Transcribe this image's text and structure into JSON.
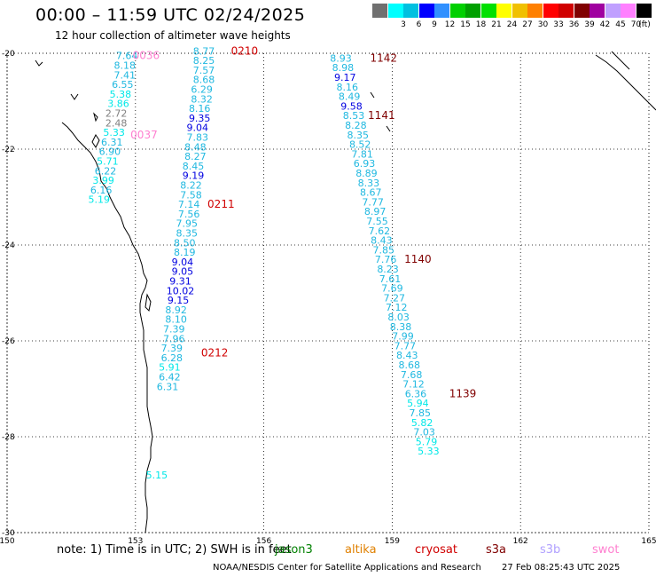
{
  "title": "00:00 – 11:59 UTC 02/24/2025",
  "subtitle": "12 hour collection of altimeter wave heights",
  "legend": {
    "unit": "(ft)",
    "bins": [
      {
        "label": "",
        "color": "#707070"
      },
      {
        "label": "3",
        "color": "#00ffff"
      },
      {
        "label": "6",
        "color": "#00c0e0"
      },
      {
        "label": "9",
        "color": "#0000ff"
      },
      {
        "label": "12",
        "color": "#3090ff"
      },
      {
        "label": "15",
        "color": "#00d000"
      },
      {
        "label": "18",
        "color": "#00a000"
      },
      {
        "label": "21",
        "color": "#00e000"
      },
      {
        "label": "24",
        "color": "#ffff00"
      },
      {
        "label": "27",
        "color": "#f0c000"
      },
      {
        "label": "30",
        "color": "#ff8000"
      },
      {
        "label": "33",
        "color": "#ff0000"
      },
      {
        "label": "36",
        "color": "#d00000"
      },
      {
        "label": "39",
        "color": "#800000"
      },
      {
        "label": "42",
        "color": "#a000a0"
      },
      {
        "label": "45",
        "color": "#c0a0ff"
      },
      {
        "label": "70",
        "color": "#ff80ff"
      },
      {
        "label": "",
        "color": "#000000"
      }
    ]
  },
  "axes": {
    "lat_labels": [
      "-20",
      "-22",
      "-24",
      "-26",
      "-28",
      "-30"
    ],
    "lon_labels": [
      "150",
      "153",
      "156",
      "159",
      "162",
      "165"
    ],
    "lat_range": [
      -30,
      -20
    ],
    "lon_range": [
      150,
      165
    ]
  },
  "note": "note:  1) Time is in UTC; 2) SWH is in feet",
  "satellites": [
    {
      "name": "jason3",
      "color": "#008000"
    },
    {
      "name": "altika",
      "color": "#e08000"
    },
    {
      "name": "cryosat",
      "color": "#d00000"
    },
    {
      "name": "s3a",
      "color": "#800000"
    },
    {
      "name": "s3b",
      "color": "#b0a0ff"
    },
    {
      "name": "swot",
      "color": "#ff80d0"
    }
  ],
  "footer": {
    "credit": "NOAA/NESDIS Center for Satellite Applications and Research",
    "generated": "27 Feb 08:25:43 UTC 2025"
  },
  "tracks": [
    {
      "time": "0210",
      "time_color": "#d00000",
      "time_lon": 155.55,
      "time_lat": -19.95,
      "points": [
        {
          "lon": 154.6,
          "lat": -19.95,
          "v": "8.77",
          "c": "#20b8e0"
        },
        {
          "lon": 154.6,
          "lat": -20.15,
          "v": "8.25",
          "c": "#20b8e0"
        },
        {
          "lon": 154.6,
          "lat": -20.35,
          "v": "7.57",
          "c": "#20b8e0"
        },
        {
          "lon": 154.6,
          "lat": -20.55,
          "v": "8.68",
          "c": "#20b8e0"
        },
        {
          "lon": 154.55,
          "lat": -20.75,
          "v": "6.29",
          "c": "#20b8e0"
        },
        {
          "lon": 154.55,
          "lat": -20.95,
          "v": "8.32",
          "c": "#20b8e0"
        },
        {
          "lon": 154.5,
          "lat": -21.15,
          "v": "8.16",
          "c": "#20b8e0"
        },
        {
          "lon": 154.5,
          "lat": -21.35,
          "v": "9.35",
          "c": "#0000e0"
        },
        {
          "lon": 154.45,
          "lat": -21.55,
          "v": "9.04",
          "c": "#0000e0"
        },
        {
          "lon": 154.45,
          "lat": -21.75,
          "v": "7.83",
          "c": "#20b8e0"
        },
        {
          "lon": 154.4,
          "lat": -21.95,
          "v": "8.48",
          "c": "#20b8e0"
        },
        {
          "lon": 154.4,
          "lat": -22.15,
          "v": "8.27",
          "c": "#20b8e0"
        },
        {
          "lon": 154.35,
          "lat": -22.35,
          "v": "8.45",
          "c": "#20b8e0"
        },
        {
          "lon": 154.35,
          "lat": -22.55,
          "v": "9.19",
          "c": "#0000e0"
        },
        {
          "lon": 154.3,
          "lat": -22.75,
          "v": "8.22",
          "c": "#20b8e0"
        },
        {
          "lon": 154.3,
          "lat": -22.95,
          "v": "7.58",
          "c": "#20b8e0"
        },
        {
          "lon": 154.25,
          "lat": -23.15,
          "v": "7.14",
          "c": "#20b8e0"
        },
        {
          "lon": 154.25,
          "lat": -23.35,
          "v": "7.56",
          "c": "#20b8e0"
        },
        {
          "lon": 154.2,
          "lat": -23.55,
          "v": "7.95",
          "c": "#20b8e0"
        },
        {
          "lon": 154.2,
          "lat": -23.75,
          "v": "8.35",
          "c": "#20b8e0"
        },
        {
          "lon": 154.15,
          "lat": -23.95,
          "v": "8.50",
          "c": "#20b8e0"
        },
        {
          "lon": 154.15,
          "lat": -24.15,
          "v": "8.19",
          "c": "#20b8e0"
        },
        {
          "lon": 154.1,
          "lat": -24.35,
          "v": "9.04",
          "c": "#0000e0"
        },
        {
          "lon": 154.1,
          "lat": -24.55,
          "v": "9.05",
          "c": "#0000e0"
        },
        {
          "lon": 154.05,
          "lat": -24.75,
          "v": "9.31",
          "c": "#0000e0"
        },
        {
          "lon": 154.05,
          "lat": -24.95,
          "v": "10.02",
          "c": "#0000e0"
        },
        {
          "lon": 154.0,
          "lat": -25.15,
          "v": "9.15",
          "c": "#0000e0"
        },
        {
          "lon": 153.95,
          "lat": -25.35,
          "v": "8.92",
          "c": "#20b8e0"
        },
        {
          "lon": 153.95,
          "lat": -25.55,
          "v": "8.10",
          "c": "#20b8e0"
        },
        {
          "lon": 153.9,
          "lat": -25.75,
          "v": "7.39",
          "c": "#20b8e0"
        },
        {
          "lon": 153.9,
          "lat": -25.95,
          "v": "7.96",
          "c": "#20b8e0"
        },
        {
          "lon": 153.85,
          "lat": -26.15,
          "v": "7.39",
          "c": "#20b8e0"
        },
        {
          "lon": 153.85,
          "lat": -26.35,
          "v": "6.28",
          "c": "#20b8e0"
        },
        {
          "lon": 153.8,
          "lat": -26.55,
          "v": "5.91",
          "c": "#00e8e8"
        },
        {
          "lon": 153.8,
          "lat": -26.75,
          "v": "6.42",
          "c": "#20b8e0"
        },
        {
          "lon": 153.75,
          "lat": -26.95,
          "v": "6.31",
          "c": "#20b8e0"
        },
        {
          "lon": 153.5,
          "lat": -28.8,
          "v": "5.15",
          "c": "#00e8e8"
        }
      ],
      "extra_labels": [
        {
          "text": "0211",
          "lon": 155.0,
          "lat": -23.15,
          "color": "#d00000"
        },
        {
          "text": "0212",
          "lon": 154.85,
          "lat": -26.25,
          "color": "#d00000"
        }
      ]
    },
    {
      "time": "0036",
      "time_color": "#ff80d0",
      "time_lon": 153.25,
      "time_lat": -20.05,
      "points": [
        {
          "lon": 152.8,
          "lat": -20.05,
          "v": "7.64",
          "c": "#20b8e0"
        },
        {
          "lon": 152.75,
          "lat": -20.25,
          "v": "8.18",
          "c": "#20b8e0"
        },
        {
          "lon": 152.75,
          "lat": -20.45,
          "v": "7.41",
          "c": "#20b8e0"
        },
        {
          "lon": 152.7,
          "lat": -20.65,
          "v": "6.55",
          "c": "#20b8e0"
        },
        {
          "lon": 152.65,
          "lat": -20.85,
          "v": "5.38",
          "c": "#00e8e8"
        },
        {
          "lon": 152.6,
          "lat": -21.05,
          "v": "3.86",
          "c": "#00e8e8"
        },
        {
          "lon": 152.55,
          "lat": -21.25,
          "v": "2.72",
          "c": "#808080"
        },
        {
          "lon": 152.55,
          "lat": -21.45,
          "v": "2.48",
          "c": "#808080"
        },
        {
          "lon": 152.5,
          "lat": -21.65,
          "v": "5.33",
          "c": "#00e8e8"
        },
        {
          "lon": 152.45,
          "lat": -21.85,
          "v": "6.31",
          "c": "#20b8e0"
        },
        {
          "lon": 152.4,
          "lat": -22.05,
          "v": "6.90",
          "c": "#20b8e0"
        },
        {
          "lon": 152.35,
          "lat": -22.25,
          "v": "5.71",
          "c": "#00e8e8"
        },
        {
          "lon": 152.3,
          "lat": -22.45,
          "v": "6.22",
          "c": "#20b8e0"
        },
        {
          "lon": 152.25,
          "lat": -22.65,
          "v": "3.99",
          "c": "#00e8e8"
        },
        {
          "lon": 152.2,
          "lat": -22.85,
          "v": "6.16",
          "c": "#20b8e0"
        },
        {
          "lon": 152.15,
          "lat": -23.05,
          "v": "5.19",
          "c": "#00e8e8"
        }
      ],
      "extra_labels": [
        {
          "text": "0037",
          "lon": 153.2,
          "lat": -21.7,
          "color": "#ff80d0"
        }
      ]
    },
    {
      "time": "1142",
      "time_color": "#800000",
      "time_lon": 158.8,
      "time_lat": -20.1,
      "points": [
        {
          "lon": 157.8,
          "lat": -20.1,
          "v": "8.93",
          "c": "#20b8e0"
        },
        {
          "lon": 157.85,
          "lat": -20.3,
          "v": "8.98",
          "c": "#20b8e0"
        },
        {
          "lon": 157.9,
          "lat": -20.5,
          "v": "9.17",
          "c": "#0000e0"
        },
        {
          "lon": 157.95,
          "lat": -20.7,
          "v": "8.16",
          "c": "#20b8e0"
        },
        {
          "lon": 158.0,
          "lat": -20.9,
          "v": "8.49",
          "c": "#20b8e0"
        },
        {
          "lon": 158.05,
          "lat": -21.1,
          "v": "9.58",
          "c": "#0000e0"
        },
        {
          "lon": 158.1,
          "lat": -21.3,
          "v": "8.53",
          "c": "#20b8e0"
        },
        {
          "lon": 158.15,
          "lat": -21.5,
          "v": "8.28",
          "c": "#20b8e0"
        },
        {
          "lon": 158.2,
          "lat": -21.7,
          "v": "8.35",
          "c": "#20b8e0"
        },
        {
          "lon": 158.25,
          "lat": -21.9,
          "v": "8.52",
          "c": "#20b8e0"
        },
        {
          "lon": 158.3,
          "lat": -22.1,
          "v": "7.81",
          "c": "#20b8e0"
        },
        {
          "lon": 158.35,
          "lat": -22.3,
          "v": "6.93",
          "c": "#20b8e0"
        },
        {
          "lon": 158.4,
          "lat": -22.5,
          "v": "8.89",
          "c": "#20b8e0"
        },
        {
          "lon": 158.45,
          "lat": -22.7,
          "v": "8.33",
          "c": "#20b8e0"
        },
        {
          "lon": 158.5,
          "lat": -22.9,
          "v": "8.67",
          "c": "#20b8e0"
        },
        {
          "lon": 158.55,
          "lat": -23.1,
          "v": "7.77",
          "c": "#20b8e0"
        },
        {
          "lon": 158.6,
          "lat": -23.3,
          "v": "8.97",
          "c": "#20b8e0"
        },
        {
          "lon": 158.65,
          "lat": -23.5,
          "v": "7.55",
          "c": "#20b8e0"
        },
        {
          "lon": 158.7,
          "lat": -23.7,
          "v": "7.62",
          "c": "#20b8e0"
        },
        {
          "lon": 158.75,
          "lat": -23.9,
          "v": "8.43",
          "c": "#20b8e0"
        },
        {
          "lon": 158.8,
          "lat": -24.1,
          "v": "7.85",
          "c": "#20b8e0"
        },
        {
          "lon": 158.85,
          "lat": -24.3,
          "v": "7.76",
          "c": "#20b8e0"
        },
        {
          "lon": 158.9,
          "lat": -24.5,
          "v": "8.23",
          "c": "#20b8e0"
        },
        {
          "lon": 158.95,
          "lat": -24.7,
          "v": "7.61",
          "c": "#20b8e0"
        },
        {
          "lon": 159.0,
          "lat": -24.9,
          "v": "7.69",
          "c": "#20b8e0"
        },
        {
          "lon": 159.05,
          "lat": -25.1,
          "v": "7.27",
          "c": "#20b8e0"
        },
        {
          "lon": 159.1,
          "lat": -25.3,
          "v": "7.12",
          "c": "#20b8e0"
        },
        {
          "lon": 159.15,
          "lat": -25.5,
          "v": "8.03",
          "c": "#20b8e0"
        },
        {
          "lon": 159.2,
          "lat": -25.7,
          "v": "8.38",
          "c": "#20b8e0"
        },
        {
          "lon": 159.25,
          "lat": -25.9,
          "v": "7.99",
          "c": "#20b8e0"
        },
        {
          "lon": 159.3,
          "lat": -26.1,
          "v": "7.77",
          "c": "#20b8e0"
        },
        {
          "lon": 159.35,
          "lat": -26.3,
          "v": "8.43",
          "c": "#20b8e0"
        },
        {
          "lon": 159.4,
          "lat": -26.5,
          "v": "8.68",
          "c": "#20b8e0"
        },
        {
          "lon": 159.45,
          "lat": -26.7,
          "v": "7.68",
          "c": "#20b8e0"
        },
        {
          "lon": 159.5,
          "lat": -26.9,
          "v": "7.12",
          "c": "#20b8e0"
        },
        {
          "lon": 159.55,
          "lat": -27.1,
          "v": "6.36",
          "c": "#20b8e0"
        },
        {
          "lon": 159.6,
          "lat": -27.3,
          "v": "5.94",
          "c": "#00e8e8"
        },
        {
          "lon": 159.65,
          "lat": -27.5,
          "v": "7.85",
          "c": "#20b8e0"
        },
        {
          "lon": 159.7,
          "lat": -27.7,
          "v": "5.82",
          "c": "#00e8e8"
        },
        {
          "lon": 159.75,
          "lat": -27.9,
          "v": "7.03",
          "c": "#20b8e0"
        },
        {
          "lon": 159.8,
          "lat": -28.1,
          "v": "5.79",
          "c": "#00e8e8"
        },
        {
          "lon": 159.85,
          "lat": -28.3,
          "v": "5.33",
          "c": "#00e8e8"
        }
      ],
      "extra_labels": [
        {
          "text": "1141",
          "lon": 158.75,
          "lat": -21.3,
          "color": "#800000"
        },
        {
          "text": "1140",
          "lon": 159.6,
          "lat": -24.3,
          "color": "#800000"
        },
        {
          "text": "1139",
          "lon": 160.65,
          "lat": -27.1,
          "color": "#800000"
        }
      ]
    }
  ]
}
